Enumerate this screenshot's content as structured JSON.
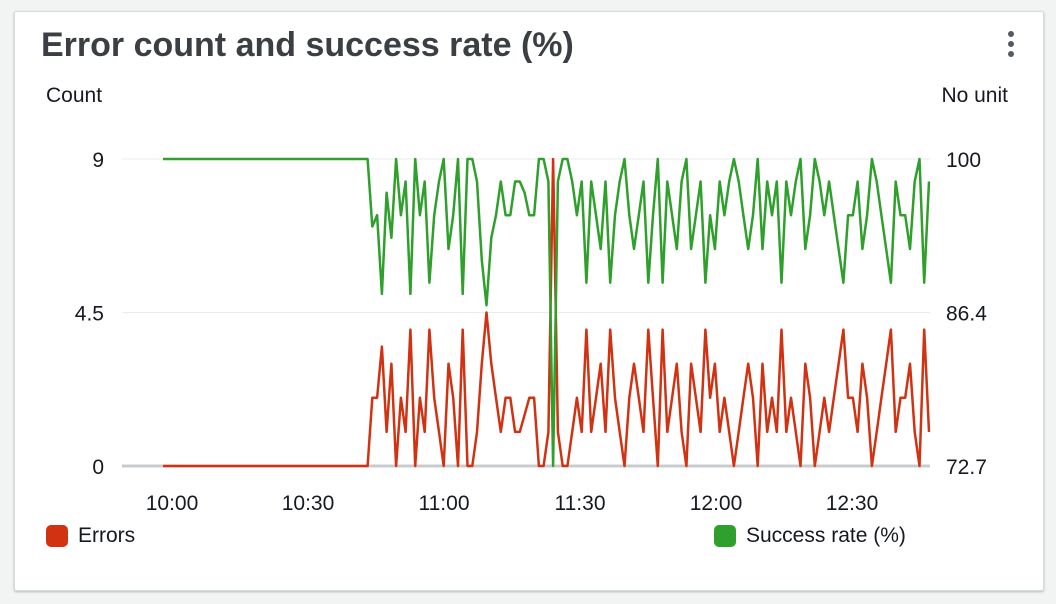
{
  "widget": {
    "title": "Error count and success rate (%)",
    "menu_icon": "vertical-ellipsis-icon"
  },
  "chart_data": {
    "type": "line",
    "title": "Error count and success rate (%)",
    "left_axis": {
      "label": "Count",
      "ticks": [
        "9",
        "4.5",
        "0"
      ],
      "range": [
        0,
        9
      ]
    },
    "right_axis": {
      "label": "No unit",
      "ticks": [
        "100",
        "86.4",
        "72.7"
      ],
      "range": [
        72.7,
        100
      ]
    },
    "x_ticks": [
      "10:00",
      "10:30",
      "11:00",
      "11:30",
      "12:00",
      "12:30"
    ],
    "grid": true,
    "legend_placement": "bottom",
    "series": [
      {
        "name": "Errors",
        "axis": "left",
        "color": "#d13212",
        "values": [
          0,
          0,
          0,
          0,
          0,
          0,
          0,
          0,
          0,
          0,
          0,
          0,
          0,
          0,
          0,
          0,
          0,
          0,
          0,
          0,
          0,
          0,
          0,
          0,
          0,
          0,
          0,
          0,
          0,
          0,
          0,
          0,
          0,
          0,
          0,
          0,
          0,
          0,
          0,
          0,
          0,
          0,
          0,
          0,
          2,
          2,
          3.5,
          1,
          3,
          0,
          2,
          1,
          4,
          0,
          2,
          1,
          4,
          2,
          1,
          0,
          3,
          2,
          0,
          4,
          0,
          0,
          1,
          3,
          4.5,
          3,
          2,
          1,
          2,
          2,
          1,
          1,
          1.5,
          2,
          2,
          0,
          0,
          1,
          9,
          1,
          0,
          0,
          1,
          2,
          1,
          4,
          1,
          2,
          3,
          1,
          4,
          2,
          1,
          0,
          2,
          3,
          2,
          1,
          4,
          2,
          0,
          4,
          1,
          2,
          3,
          1,
          0,
          3,
          2,
          1,
          4,
          2,
          3,
          1,
          2,
          1,
          0,
          1,
          2,
          3,
          2,
          0,
          3,
          1,
          2,
          1,
          4,
          1,
          2,
          1,
          0,
          3,
          2,
          0,
          1,
          2,
          1,
          2,
          3,
          4,
          2,
          2,
          1,
          3,
          2,
          0,
          1,
          2,
          3,
          4,
          1,
          2,
          2,
          3,
          1,
          0,
          4,
          1
        ]
      },
      {
        "name": "Success rate (%)",
        "axis": "right",
        "color": "#2ea02b",
        "values": [
          100,
          100,
          100,
          100,
          100,
          100,
          100,
          100,
          100,
          100,
          100,
          100,
          100,
          100,
          100,
          100,
          100,
          100,
          100,
          100,
          100,
          100,
          100,
          100,
          100,
          100,
          100,
          100,
          100,
          100,
          100,
          100,
          100,
          100,
          100,
          100,
          100,
          100,
          100,
          100,
          100,
          100,
          100,
          100,
          94,
          95,
          88,
          97,
          93,
          100,
          95,
          98,
          88,
          100,
          95,
          98,
          89,
          95,
          98,
          100,
          92,
          95,
          100,
          88,
          100,
          100,
          98,
          91,
          87,
          93,
          95,
          98,
          95,
          95,
          98,
          98,
          97,
          95,
          95,
          100,
          100,
          98,
          72.7,
          98,
          100,
          100,
          98,
          95,
          98,
          89,
          98,
          95,
          92,
          98,
          89,
          95,
          98,
          100,
          95,
          92,
          95,
          98,
          89,
          95,
          100,
          89,
          98,
          95,
          92,
          98,
          100,
          92,
          95,
          98,
          89,
          95,
          92,
          98,
          95,
          98,
          100,
          98,
          95,
          92,
          95,
          100,
          92,
          98,
          95,
          98,
          89,
          98,
          95,
          98,
          100,
          92,
          95,
          100,
          98,
          95,
          98,
          95,
          92,
          89,
          95,
          95,
          98,
          92,
          95,
          100,
          98,
          95,
          92,
          89,
          98,
          95,
          95,
          92,
          98,
          100,
          89,
          98
        ]
      }
    ]
  },
  "legend": {
    "errors_label": "Errors",
    "success_label": "Success rate (%)"
  }
}
